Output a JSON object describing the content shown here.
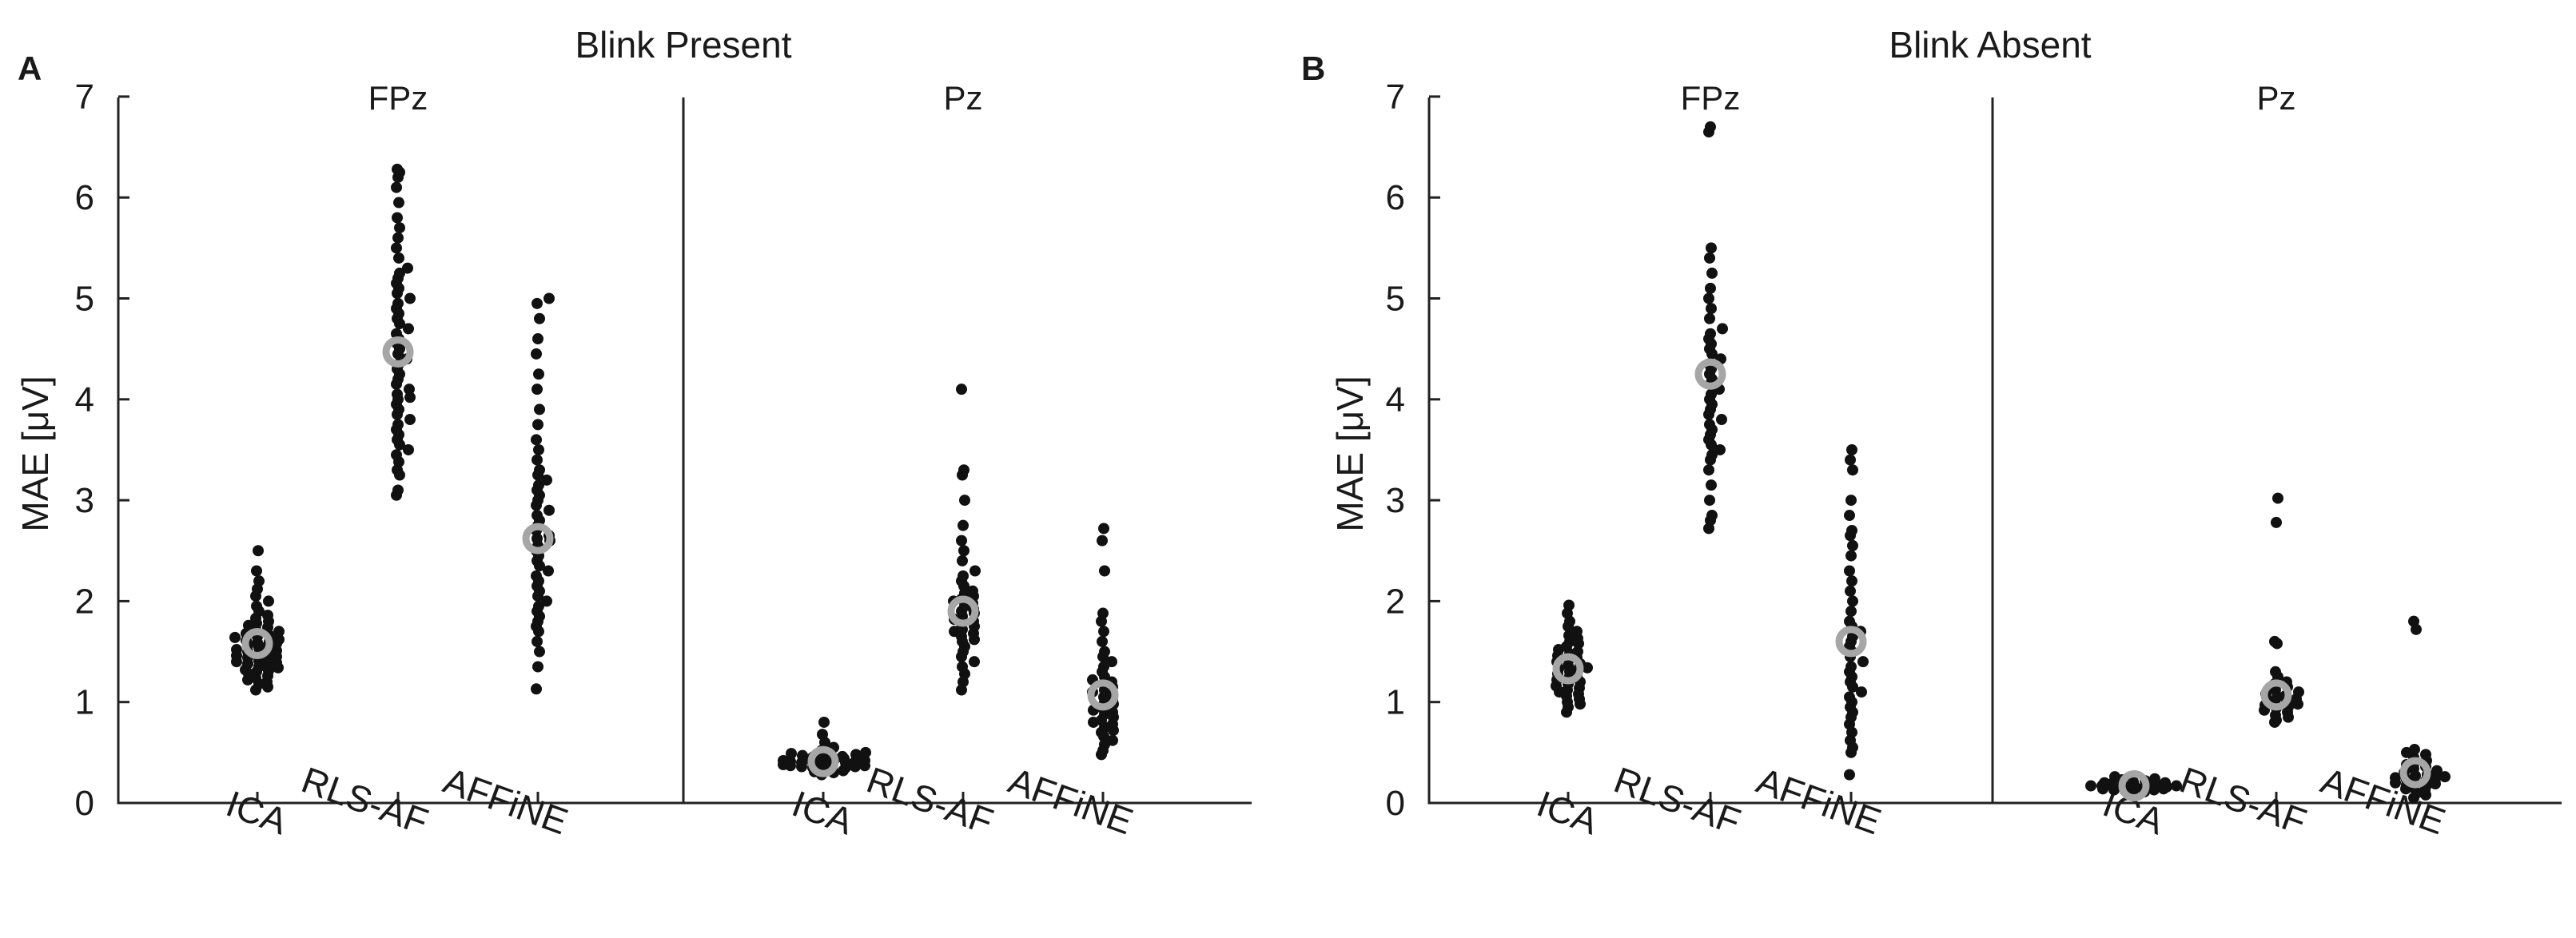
{
  "figure": {
    "letters": [
      "A",
      "B"
    ],
    "titles": [
      "Blink Present",
      "Blink Absent"
    ]
  },
  "chart_data": [
    {
      "type": "scatter",
      "title": "Blink Present",
      "subtitle": "FPz",
      "panel_letter": "A",
      "ylabel": "MAE [μV]",
      "ylim": [
        0,
        7
      ],
      "yticks": [
        0,
        1,
        2,
        3,
        4,
        5,
        6,
        7
      ],
      "categories": [
        "ICA",
        "RLS-AF",
        "AFFiNE"
      ],
      "means": [
        1.58,
        4.47,
        2.62
      ],
      "series": [
        {
          "name": "ICA",
          "values": [
            1.12,
            1.15,
            1.18,
            1.2,
            1.22,
            1.24,
            1.26,
            1.28,
            1.3,
            1.31,
            1.32,
            1.34,
            1.35,
            1.36,
            1.38,
            1.39,
            1.4,
            1.41,
            1.42,
            1.44,
            1.45,
            1.46,
            1.48,
            1.49,
            1.5,
            1.51,
            1.52,
            1.54,
            1.55,
            1.56,
            1.58,
            1.59,
            1.6,
            1.61,
            1.62,
            1.64,
            1.65,
            1.66,
            1.68,
            1.7,
            1.72,
            1.74,
            1.76,
            1.78,
            1.8,
            1.83,
            1.86,
            1.9,
            1.95,
            2.0,
            2.05,
            2.12,
            2.2,
            2.3,
            2.5
          ]
        },
        {
          "name": "RLS-AF",
          "values": [
            3.05,
            3.1,
            3.25,
            3.3,
            3.38,
            3.45,
            3.5,
            3.55,
            3.6,
            3.65,
            3.7,
            3.75,
            3.8,
            3.85,
            3.9,
            3.95,
            4.0,
            4.02,
            4.05,
            4.1,
            4.15,
            4.2,
            4.25,
            4.3,
            4.35,
            4.4,
            4.45,
            4.5,
            4.55,
            4.6,
            4.65,
            4.7,
            4.75,
            4.8,
            4.85,
            4.9,
            4.95,
            5.0,
            5.05,
            5.1,
            5.15,
            5.2,
            5.25,
            5.3,
            5.4,
            5.5,
            5.6,
            5.7,
            5.8,
            5.95,
            6.1,
            6.2,
            6.25,
            6.28
          ]
        },
        {
          "name": "AFFiNE",
          "values": [
            1.13,
            1.35,
            1.5,
            1.6,
            1.7,
            1.75,
            1.8,
            1.85,
            1.9,
            1.95,
            2.0,
            2.05,
            2.1,
            2.15,
            2.2,
            2.25,
            2.3,
            2.35,
            2.4,
            2.45,
            2.5,
            2.55,
            2.6,
            2.62,
            2.65,
            2.7,
            2.75,
            2.8,
            2.85,
            2.9,
            2.95,
            3.0,
            3.05,
            3.1,
            3.15,
            3.2,
            3.25,
            3.3,
            3.4,
            3.5,
            3.6,
            3.75,
            3.9,
            4.1,
            4.25,
            4.45,
            4.6,
            4.8,
            4.95,
            5.0
          ]
        }
      ]
    },
    {
      "type": "scatter",
      "subtitle": "Pz",
      "ylim": [
        0,
        7
      ],
      "categories": [
        "ICA",
        "RLS-AF",
        "AFFiNE"
      ],
      "means": [
        0.41,
        1.9,
        1.07
      ],
      "series": [
        {
          "name": "ICA",
          "values": [
            0.28,
            0.3,
            0.31,
            0.32,
            0.33,
            0.34,
            0.35,
            0.35,
            0.36,
            0.36,
            0.37,
            0.37,
            0.38,
            0.38,
            0.39,
            0.39,
            0.4,
            0.4,
            0.4,
            0.41,
            0.41,
            0.42,
            0.42,
            0.43,
            0.43,
            0.44,
            0.44,
            0.45,
            0.45,
            0.46,
            0.46,
            0.47,
            0.48,
            0.49,
            0.5,
            0.52,
            0.55,
            0.6,
            0.68,
            0.8
          ]
        },
        {
          "name": "RLS-AF",
          "values": [
            1.12,
            1.2,
            1.28,
            1.35,
            1.4,
            1.45,
            1.5,
            1.55,
            1.6,
            1.62,
            1.65,
            1.68,
            1.7,
            1.72,
            1.75,
            1.78,
            1.8,
            1.82,
            1.85,
            1.88,
            1.9,
            1.92,
            1.95,
            1.98,
            2.0,
            2.02,
            2.05,
            2.08,
            2.1,
            2.15,
            2.2,
            2.25,
            2.3,
            2.4,
            2.5,
            2.6,
            2.75,
            3.0,
            3.25,
            3.3,
            4.1
          ]
        },
        {
          "name": "AFFiNE",
          "values": [
            0.48,
            0.52,
            0.58,
            0.62,
            0.66,
            0.7,
            0.72,
            0.75,
            0.78,
            0.8,
            0.82,
            0.85,
            0.88,
            0.9,
            0.92,
            0.95,
            0.98,
            1.0,
            1.02,
            1.05,
            1.08,
            1.1,
            1.12,
            1.15,
            1.18,
            1.2,
            1.22,
            1.25,
            1.3,
            1.35,
            1.4,
            1.45,
            1.5,
            1.6,
            1.7,
            1.8,
            1.88,
            2.3,
            2.6,
            2.72
          ]
        }
      ]
    },
    {
      "type": "scatter",
      "title": "Blink Absent",
      "subtitle": "FPz",
      "panel_letter": "B",
      "ylabel": "MAE [μV]",
      "ylim": [
        0,
        7
      ],
      "yticks": [
        0,
        1,
        2,
        3,
        4,
        5,
        6,
        7
      ],
      "categories": [
        "ICA",
        "RLS-AF",
        "AFFiNE"
      ],
      "means": [
        1.33,
        4.25,
        1.6
      ],
      "series": [
        {
          "name": "ICA",
          "values": [
            0.9,
            0.95,
            0.98,
            1.0,
            1.03,
            1.06,
            1.08,
            1.1,
            1.12,
            1.14,
            1.16,
            1.18,
            1.2,
            1.22,
            1.24,
            1.26,
            1.28,
            1.3,
            1.32,
            1.33,
            1.34,
            1.36,
            1.38,
            1.4,
            1.42,
            1.44,
            1.46,
            1.48,
            1.5,
            1.52,
            1.55,
            1.58,
            1.6,
            1.63,
            1.66,
            1.7,
            1.75,
            1.8,
            1.88,
            1.96
          ]
        },
        {
          "name": "RLS-AF",
          "values": [
            2.72,
            2.8,
            2.85,
            3.0,
            3.15,
            3.3,
            3.4,
            3.45,
            3.5,
            3.55,
            3.6,
            3.65,
            3.7,
            3.75,
            3.8,
            3.85,
            3.9,
            3.95,
            4.0,
            4.05,
            4.1,
            4.15,
            4.2,
            4.25,
            4.3,
            4.35,
            4.4,
            4.45,
            4.5,
            4.55,
            4.6,
            4.65,
            4.7,
            4.8,
            4.9,
            5.0,
            5.1,
            5.25,
            5.4,
            5.5,
            6.65,
            6.7
          ]
        },
        {
          "name": "AFFiNE",
          "values": [
            0.28,
            0.5,
            0.55,
            0.62,
            0.7,
            0.78,
            0.85,
            0.9,
            0.95,
            1.0,
            1.05,
            1.1,
            1.15,
            1.2,
            1.25,
            1.3,
            1.35,
            1.4,
            1.45,
            1.5,
            1.55,
            1.6,
            1.65,
            1.7,
            1.75,
            1.8,
            1.9,
            2.0,
            2.1,
            2.2,
            2.3,
            2.45,
            2.55,
            2.65,
            2.7,
            2.85,
            3.0,
            3.3,
            3.4,
            3.5
          ]
        }
      ]
    },
    {
      "type": "scatter",
      "subtitle": "Pz",
      "ylim": [
        0,
        7
      ],
      "categories": [
        "ICA",
        "RLS-AF",
        "AFFiNE"
      ],
      "means": [
        0.17,
        1.07,
        0.3
      ],
      "series": [
        {
          "name": "ICA",
          "values": [
            0.1,
            0.11,
            0.12,
            0.13,
            0.13,
            0.14,
            0.14,
            0.15,
            0.15,
            0.15,
            0.16,
            0.16,
            0.16,
            0.17,
            0.17,
            0.17,
            0.18,
            0.18,
            0.18,
            0.19,
            0.19,
            0.2,
            0.2,
            0.21,
            0.22,
            0.23,
            0.24,
            0.26
          ]
        },
        {
          "name": "RLS-AF",
          "values": [
            0.8,
            0.82,
            0.85,
            0.87,
            0.9,
            0.92,
            0.94,
            0.95,
            0.97,
            0.98,
            1.0,
            1.0,
            1.02,
            1.03,
            1.05,
            1.06,
            1.08,
            1.1,
            1.12,
            1.15,
            1.18,
            1.2,
            1.25,
            1.3,
            1.58,
            1.6,
            2.78,
            3.02
          ]
        },
        {
          "name": "AFFiNE",
          "values": [
            0.05,
            0.08,
            0.1,
            0.12,
            0.14,
            0.15,
            0.16,
            0.18,
            0.19,
            0.2,
            0.21,
            0.22,
            0.23,
            0.24,
            0.25,
            0.26,
            0.27,
            0.28,
            0.3,
            0.32,
            0.34,
            0.36,
            0.38,
            0.4,
            0.42,
            0.45,
            0.48,
            0.5,
            0.53,
            1.72,
            1.8
          ]
        }
      ]
    }
  ]
}
